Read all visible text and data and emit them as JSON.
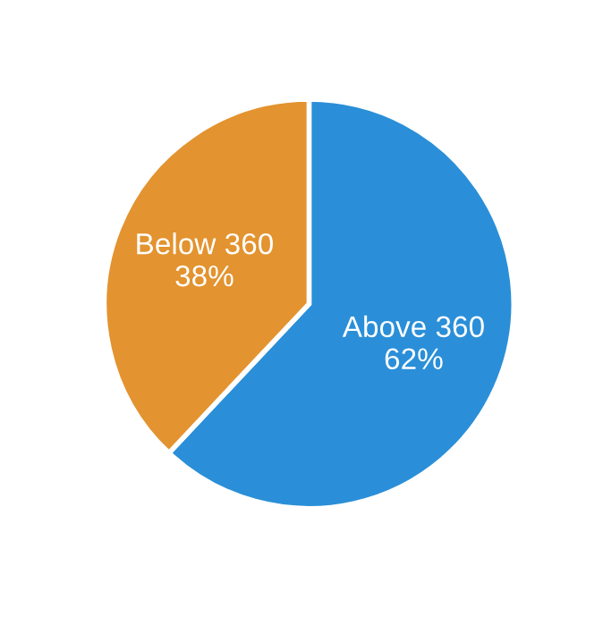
{
  "chart_data": {
    "type": "pie",
    "categories": [
      "Above 360",
      "Below 360"
    ],
    "values": [
      62,
      38
    ],
    "value_labels": [
      "62%",
      "38%"
    ],
    "colors": [
      "#2a8fd8",
      "#e3932f"
    ]
  }
}
